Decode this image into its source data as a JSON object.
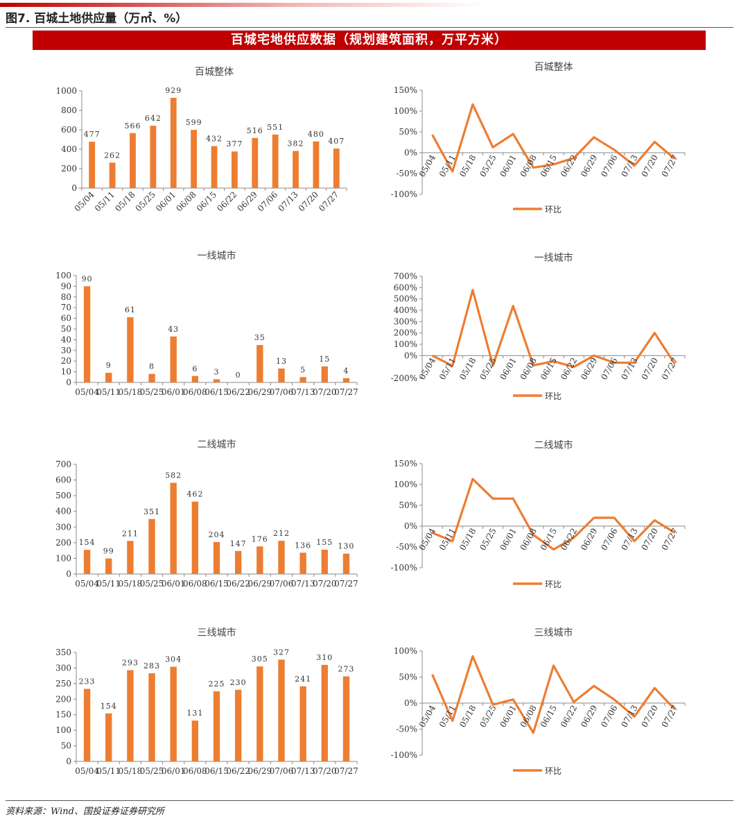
{
  "header": {
    "figure_title": "图7. 百城土地供应量（万㎡、%）",
    "banner": "百城宅地供应数据（规划建筑面积，万平方米）"
  },
  "footer": {
    "source": "资料来源：Wind、国投证券证券研究所"
  },
  "colors": {
    "accent": "#c00000",
    "series": "#ed7d31"
  },
  "chart_data": [
    {
      "id": "bar-all",
      "type": "bar",
      "title": "百城整体",
      "categories": [
        "05/04",
        "05/11",
        "05/18",
        "05/25",
        "06/01",
        "06/08",
        "06/15",
        "06/22",
        "06/29",
        "07/06",
        "07/13",
        "07/20",
        "07/27"
      ],
      "values": [
        477,
        262,
        566,
        642,
        929,
        599,
        432,
        377,
        516,
        551,
        382,
        480,
        407
      ],
      "data_labels": [
        "477",
        "262",
        "566",
        "642",
        "929",
        "599",
        "432",
        "377",
        "516",
        "551",
        "382",
        "480",
        "407"
      ],
      "yticks": [
        "0",
        "200",
        "400",
        "600",
        "800",
        "1000"
      ],
      "ylim": [
        0,
        1000
      ],
      "x_labels_rotated": true,
      "grid": false
    },
    {
      "id": "line-all",
      "type": "line",
      "title": "百城整体",
      "categories": [
        "05/04",
        "05/11",
        "05/18",
        "05/25",
        "06/01",
        "06/08",
        "06/15",
        "06/22",
        "06/29",
        "07/06",
        "07/13",
        "07/20",
        "07/27"
      ],
      "series": [
        {
          "name": "环比",
          "values": [
            43,
            -45,
            116,
            13,
            45,
            -36,
            -28,
            -13,
            37,
            7,
            -31,
            26,
            -15
          ]
        }
      ],
      "yticks": [
        "-100%",
        "-50%",
        "0%",
        "50%",
        "100%",
        "150%"
      ],
      "ylim": [
        -100,
        150
      ],
      "legend": "bottom",
      "grid": false
    },
    {
      "id": "bar-t1",
      "type": "bar",
      "title": "一线城市",
      "categories": [
        "05/04",
        "05/11",
        "05/18",
        "05/25",
        "06/01",
        "06/08",
        "06/15",
        "06/22",
        "06/29",
        "07/06",
        "07/13",
        "07/20",
        "07/27"
      ],
      "values": [
        90,
        9,
        61,
        8,
        43,
        6,
        3,
        0,
        35,
        13,
        5,
        15,
        4
      ],
      "data_labels": [
        "90",
        "9",
        "61",
        "8",
        "43",
        "6",
        "3",
        "0",
        "35",
        "13",
        "5",
        "15",
        "4"
      ],
      "yticks": [
        "0",
        "10",
        "20",
        "30",
        "40",
        "50",
        "60",
        "70",
        "80",
        "90",
        "100"
      ],
      "ylim": [
        0,
        100
      ],
      "x_labels_rotated": false,
      "grid": false
    },
    {
      "id": "line-t1",
      "type": "line",
      "title": "一线城市",
      "categories": [
        "05/04",
        "05/11",
        "05/18",
        "05/25",
        "06/01",
        "06/08",
        "06/15",
        "06/22",
        "06/29",
        "07/06",
        "07/13",
        "07/20",
        "07/27"
      ],
      "series": [
        {
          "name": "环比",
          "values": [
            0,
            -90,
            578,
            -87,
            438,
            -86,
            -50,
            -100,
            0,
            -63,
            -62,
            200,
            -73
          ]
        }
      ],
      "yticks": [
        "-200%",
        "0%",
        "100%",
        "200%",
        "300%",
        "400%",
        "500%",
        "600%",
        "700%"
      ],
      "ylim": [
        -200,
        700
      ],
      "legend": "bottom",
      "grid": false
    },
    {
      "id": "bar-t2",
      "type": "bar",
      "title": "二线城市",
      "categories": [
        "05/04",
        "05/11",
        "05/18",
        "05/25",
        "06/01",
        "06/08",
        "06/15",
        "06/22",
        "06/29",
        "07/06",
        "07/13",
        "07/20",
        "07/27"
      ],
      "values": [
        154,
        99,
        211,
        351,
        582,
        462,
        204,
        147,
        176,
        212,
        136,
        155,
        130
      ],
      "data_labels": [
        "154",
        "99",
        "211",
        "351",
        "582",
        "462",
        "204",
        "147",
        "176",
        "212",
        "136",
        "155",
        "130"
      ],
      "yticks": [
        "0",
        "100",
        "200",
        "300",
        "400",
        "500",
        "600",
        "700"
      ],
      "ylim": [
        0,
        700
      ],
      "x_labels_rotated": false,
      "grid": false
    },
    {
      "id": "line-t2",
      "type": "line",
      "title": "二线城市",
      "categories": [
        "05/04",
        "05/11",
        "05/18",
        "05/25",
        "06/01",
        "06/08",
        "06/15",
        "06/22",
        "06/29",
        "07/06",
        "07/13",
        "07/20",
        "07/27"
      ],
      "series": [
        {
          "name": "环比",
          "values": [
            -16,
            -36,
            113,
            66,
            66,
            -21,
            -56,
            -28,
            20,
            20,
            -36,
            14,
            -16
          ]
        }
      ],
      "yticks": [
        "-100%",
        "-50%",
        "0%",
        "50%",
        "100%",
        "150%"
      ],
      "ylim": [
        -100,
        150
      ],
      "legend": "bottom",
      "grid": false
    },
    {
      "id": "bar-t3",
      "type": "bar",
      "title": "三线城市",
      "categories": [
        "05/04",
        "05/11",
        "05/18",
        "05/25",
        "06/01",
        "06/08",
        "06/15",
        "06/22",
        "06/29",
        "07/06",
        "07/13",
        "07/20",
        "07/27"
      ],
      "values": [
        233,
        154,
        293,
        283,
        304,
        131,
        225,
        230,
        305,
        327,
        241,
        310,
        273
      ],
      "data_labels": [
        "233",
        "154",
        "293",
        "283",
        "304",
        "131",
        "225",
        "230",
        "305",
        "327",
        "241",
        "310",
        "273"
      ],
      "yticks": [
        "0",
        "50",
        "100",
        "150",
        "200",
        "250",
        "300",
        "350"
      ],
      "ylim": [
        0,
        350
      ],
      "x_labels_rotated": false,
      "grid": false
    },
    {
      "id": "line-t3",
      "type": "line",
      "title": "三线城市",
      "categories": [
        "05/04",
        "05/11",
        "05/18",
        "05/25",
        "06/01",
        "06/08",
        "06/15",
        "06/22",
        "06/29",
        "07/06",
        "07/13",
        "07/20",
        "07/27"
      ],
      "series": [
        {
          "name": "环比",
          "values": [
            55,
            -34,
            90,
            -3,
            7,
            -57,
            72,
            2,
            33,
            7,
            -26,
            29,
            -12
          ]
        }
      ],
      "yticks": [
        "-100%",
        "-50%",
        "0%",
        "50%",
        "100%"
      ],
      "ylim": [
        -100,
        100
      ],
      "legend": "bottom",
      "grid": false
    }
  ]
}
